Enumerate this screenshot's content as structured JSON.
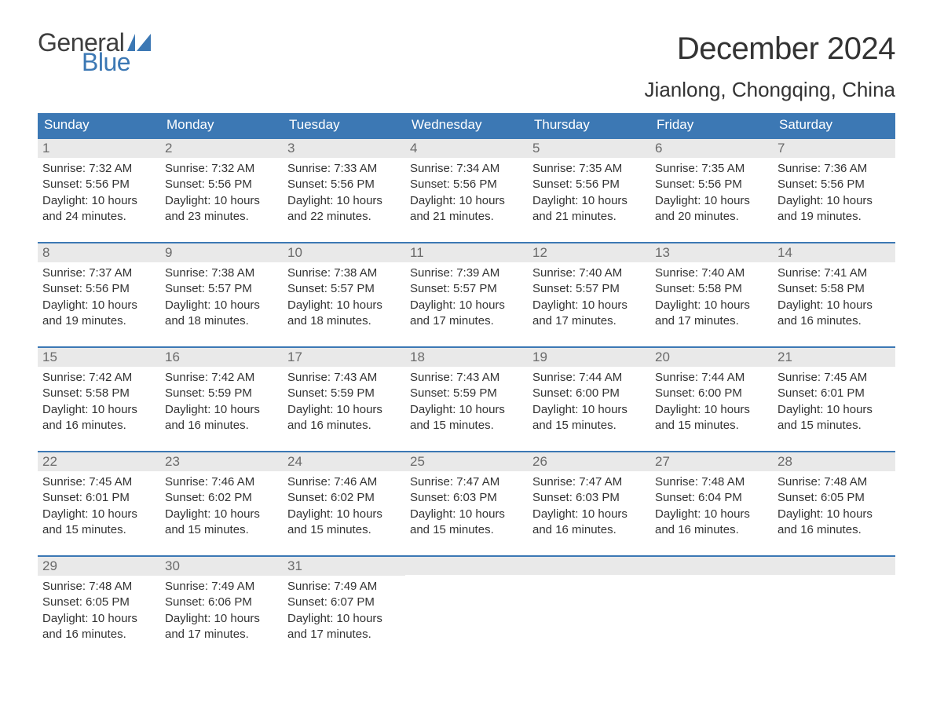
{
  "brand": {
    "line1": "General",
    "line2": "Blue",
    "mark_color": "#3c78b4"
  },
  "title": "December 2024",
  "location": "Jianlong, Chongqing, China",
  "colors": {
    "header_bg": "#3c78b4",
    "header_text": "#ffffff",
    "daybar_bg": "#e9e9e9",
    "daybar_border": "#3c78b4",
    "text": "#333333",
    "daynum": "#6a6a6a",
    "page_bg": "#ffffff"
  },
  "typography": {
    "title_pt": 40,
    "location_pt": 26,
    "header_pt": 17,
    "body_pt": 15
  },
  "headers": [
    "Sunday",
    "Monday",
    "Tuesday",
    "Wednesday",
    "Thursday",
    "Friday",
    "Saturday"
  ],
  "weeks": [
    [
      {
        "n": "1",
        "sunrise": "7:32 AM",
        "sunset": "5:56 PM",
        "dl1": "10 hours",
        "dl2": "and 24 minutes."
      },
      {
        "n": "2",
        "sunrise": "7:32 AM",
        "sunset": "5:56 PM",
        "dl1": "10 hours",
        "dl2": "and 23 minutes."
      },
      {
        "n": "3",
        "sunrise": "7:33 AM",
        "sunset": "5:56 PM",
        "dl1": "10 hours",
        "dl2": "and 22 minutes."
      },
      {
        "n": "4",
        "sunrise": "7:34 AM",
        "sunset": "5:56 PM",
        "dl1": "10 hours",
        "dl2": "and 21 minutes."
      },
      {
        "n": "5",
        "sunrise": "7:35 AM",
        "sunset": "5:56 PM",
        "dl1": "10 hours",
        "dl2": "and 21 minutes."
      },
      {
        "n": "6",
        "sunrise": "7:35 AM",
        "sunset": "5:56 PM",
        "dl1": "10 hours",
        "dl2": "and 20 minutes."
      },
      {
        "n": "7",
        "sunrise": "7:36 AM",
        "sunset": "5:56 PM",
        "dl1": "10 hours",
        "dl2": "and 19 minutes."
      }
    ],
    [
      {
        "n": "8",
        "sunrise": "7:37 AM",
        "sunset": "5:56 PM",
        "dl1": "10 hours",
        "dl2": "and 19 minutes."
      },
      {
        "n": "9",
        "sunrise": "7:38 AM",
        "sunset": "5:57 PM",
        "dl1": "10 hours",
        "dl2": "and 18 minutes."
      },
      {
        "n": "10",
        "sunrise": "7:38 AM",
        "sunset": "5:57 PM",
        "dl1": "10 hours",
        "dl2": "and 18 minutes."
      },
      {
        "n": "11",
        "sunrise": "7:39 AM",
        "sunset": "5:57 PM",
        "dl1": "10 hours",
        "dl2": "and 17 minutes."
      },
      {
        "n": "12",
        "sunrise": "7:40 AM",
        "sunset": "5:57 PM",
        "dl1": "10 hours",
        "dl2": "and 17 minutes."
      },
      {
        "n": "13",
        "sunrise": "7:40 AM",
        "sunset": "5:58 PM",
        "dl1": "10 hours",
        "dl2": "and 17 minutes."
      },
      {
        "n": "14",
        "sunrise": "7:41 AM",
        "sunset": "5:58 PM",
        "dl1": "10 hours",
        "dl2": "and 16 minutes."
      }
    ],
    [
      {
        "n": "15",
        "sunrise": "7:42 AM",
        "sunset": "5:58 PM",
        "dl1": "10 hours",
        "dl2": "and 16 minutes."
      },
      {
        "n": "16",
        "sunrise": "7:42 AM",
        "sunset": "5:59 PM",
        "dl1": "10 hours",
        "dl2": "and 16 minutes."
      },
      {
        "n": "17",
        "sunrise": "7:43 AM",
        "sunset": "5:59 PM",
        "dl1": "10 hours",
        "dl2": "and 16 minutes."
      },
      {
        "n": "18",
        "sunrise": "7:43 AM",
        "sunset": "5:59 PM",
        "dl1": "10 hours",
        "dl2": "and 15 minutes."
      },
      {
        "n": "19",
        "sunrise": "7:44 AM",
        "sunset": "6:00 PM",
        "dl1": "10 hours",
        "dl2": "and 15 minutes."
      },
      {
        "n": "20",
        "sunrise": "7:44 AM",
        "sunset": "6:00 PM",
        "dl1": "10 hours",
        "dl2": "and 15 minutes."
      },
      {
        "n": "21",
        "sunrise": "7:45 AM",
        "sunset": "6:01 PM",
        "dl1": "10 hours",
        "dl2": "and 15 minutes."
      }
    ],
    [
      {
        "n": "22",
        "sunrise": "7:45 AM",
        "sunset": "6:01 PM",
        "dl1": "10 hours",
        "dl2": "and 15 minutes."
      },
      {
        "n": "23",
        "sunrise": "7:46 AM",
        "sunset": "6:02 PM",
        "dl1": "10 hours",
        "dl2": "and 15 minutes."
      },
      {
        "n": "24",
        "sunrise": "7:46 AM",
        "sunset": "6:02 PM",
        "dl1": "10 hours",
        "dl2": "and 15 minutes."
      },
      {
        "n": "25",
        "sunrise": "7:47 AM",
        "sunset": "6:03 PM",
        "dl1": "10 hours",
        "dl2": "and 15 minutes."
      },
      {
        "n": "26",
        "sunrise": "7:47 AM",
        "sunset": "6:03 PM",
        "dl1": "10 hours",
        "dl2": "and 16 minutes."
      },
      {
        "n": "27",
        "sunrise": "7:48 AM",
        "sunset": "6:04 PM",
        "dl1": "10 hours",
        "dl2": "and 16 minutes."
      },
      {
        "n": "28",
        "sunrise": "7:48 AM",
        "sunset": "6:05 PM",
        "dl1": "10 hours",
        "dl2": "and 16 minutes."
      }
    ],
    [
      {
        "n": "29",
        "sunrise": "7:48 AM",
        "sunset": "6:05 PM",
        "dl1": "10 hours",
        "dl2": "and 16 minutes."
      },
      {
        "n": "30",
        "sunrise": "7:49 AM",
        "sunset": "6:06 PM",
        "dl1": "10 hours",
        "dl2": "and 17 minutes."
      },
      {
        "n": "31",
        "sunrise": "7:49 AM",
        "sunset": "6:07 PM",
        "dl1": "10 hours",
        "dl2": "and 17 minutes."
      },
      null,
      null,
      null,
      null
    ]
  ],
  "labels": {
    "sunrise": "Sunrise: ",
    "sunset": "Sunset: ",
    "daylight": "Daylight: "
  }
}
